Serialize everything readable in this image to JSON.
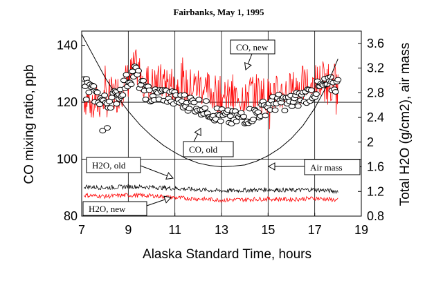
{
  "chart_data": {
    "type": "line",
    "title": "Fairbanks, May 1, 1995",
    "xlabel": "Alaska Standard Time, hours",
    "ylabel": "CO mixing ratio, ppb",
    "y2label": "Total H2O (g/cm2), air mass",
    "xlim": [
      7,
      19
    ],
    "ylim": [
      80,
      145
    ],
    "y2lim": [
      0.8,
      3.8
    ],
    "xticks": [
      "7",
      "9",
      "11",
      "13",
      "15",
      "17",
      "19"
    ],
    "yticks": [
      "80",
      "100",
      "120",
      "140"
    ],
    "y2ticks": [
      "0.8",
      "1.2",
      "1.6",
      "2",
      "2.4",
      "2.8",
      "3.2",
      "3.6"
    ],
    "grid": true,
    "colors": {
      "new": "#ff0000",
      "old": "#000000"
    },
    "annotations": [
      {
        "text": "CO, new"
      },
      {
        "text": "CO, old"
      },
      {
        "text": "H2O, old"
      },
      {
        "text": "H2O, new"
      },
      {
        "text": "Air mass"
      }
    ],
    "series": [
      {
        "name": "CO, new",
        "axis": "left",
        "style": "noisy-line",
        "color": "#ff0000",
        "x": [
          7.1,
          7.5,
          8.0,
          8.5,
          9.0,
          9.3,
          9.6,
          10.0,
          10.5,
          11.0,
          11.5,
          12.0,
          12.5,
          13.0,
          13.5,
          14.0,
          14.5,
          15.0,
          15.5,
          16.0,
          16.5,
          17.0,
          17.5,
          18.0
        ],
        "values": [
          122,
          120,
          121,
          123,
          128,
          132,
          129,
          126,
          127,
          126,
          125,
          126,
          124,
          122,
          121,
          123,
          124,
          122,
          123,
          124,
          126,
          127,
          128,
          126
        ]
      },
      {
        "name": "CO, old",
        "axis": "left",
        "style": "markers",
        "color": "#000000",
        "x": [
          7.1,
          7.5,
          8.0,
          8.5,
          9.0,
          9.3,
          9.6,
          10.0,
          10.5,
          11.0,
          11.5,
          12.0,
          12.5,
          13.0,
          13.5,
          14.0,
          14.5,
          15.0,
          15.5,
          16.0,
          16.5,
          17.0,
          17.5,
          18.0
        ],
        "values": [
          127,
          123,
          120,
          122,
          128,
          131,
          125,
          122,
          123,
          121,
          120,
          119,
          117,
          115,
          114,
          115,
          116,
          119,
          120,
          120,
          122,
          124,
          126,
          126
        ]
      },
      {
        "name": "H2O, old",
        "axis": "right",
        "style": "noisy-line",
        "color": "#000000",
        "x": [
          7.1,
          8.0,
          9.0,
          10.0,
          11.0,
          12.0,
          13.0,
          14.0,
          15.0,
          16.0,
          17.0,
          18.0
        ],
        "values": [
          1.28,
          1.26,
          1.28,
          1.27,
          1.25,
          1.23,
          1.21,
          1.22,
          1.23,
          1.22,
          1.23,
          1.2
        ]
      },
      {
        "name": "H2O, new",
        "axis": "right",
        "style": "noisy-line",
        "color": "#ff0000",
        "x": [
          7.1,
          8.0,
          9.0,
          10.0,
          11.0,
          12.0,
          13.0,
          14.0,
          15.0,
          16.0,
          17.0,
          18.0
        ],
        "values": [
          1.14,
          1.12,
          1.14,
          1.13,
          1.1,
          1.08,
          1.06,
          1.07,
          1.08,
          1.07,
          1.09,
          1.06
        ]
      },
      {
        "name": "Air mass",
        "axis": "right",
        "style": "line",
        "color": "#000000",
        "x": [
          7.0,
          7.5,
          8.0,
          8.5,
          9.0,
          9.5,
          10.0,
          10.5,
          11.0,
          11.5,
          12.0,
          12.5,
          13.0,
          13.5,
          14.0,
          14.5,
          15.0,
          15.5,
          16.0,
          16.5,
          17.0,
          17.5,
          18.0
        ],
        "values": [
          3.75,
          3.4,
          3.05,
          2.75,
          2.5,
          2.28,
          2.1,
          1.95,
          1.83,
          1.73,
          1.66,
          1.62,
          1.6,
          1.61,
          1.63,
          1.69,
          1.78,
          1.9,
          2.06,
          2.27,
          2.55,
          2.9,
          3.35
        ]
      }
    ]
  }
}
